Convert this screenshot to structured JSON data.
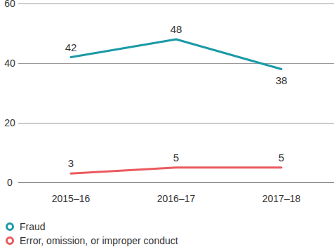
{
  "chart_data": {
    "type": "line",
    "categories": [
      "2015–16",
      "2016–17",
      "2017–18"
    ],
    "series": [
      {
        "name": "Fraud",
        "color": "#1b9aa6",
        "values": [
          42,
          48,
          38
        ]
      },
      {
        "name": "Error, omission, or improper conduct",
        "color": "#ea5a5e",
        "values": [
          3,
          5,
          5
        ]
      }
    ],
    "ylim": [
      0,
      60
    ],
    "yticks": [
      0,
      20,
      40,
      60
    ],
    "grid": true,
    "data_labels": true,
    "legend": "bottom-left"
  }
}
